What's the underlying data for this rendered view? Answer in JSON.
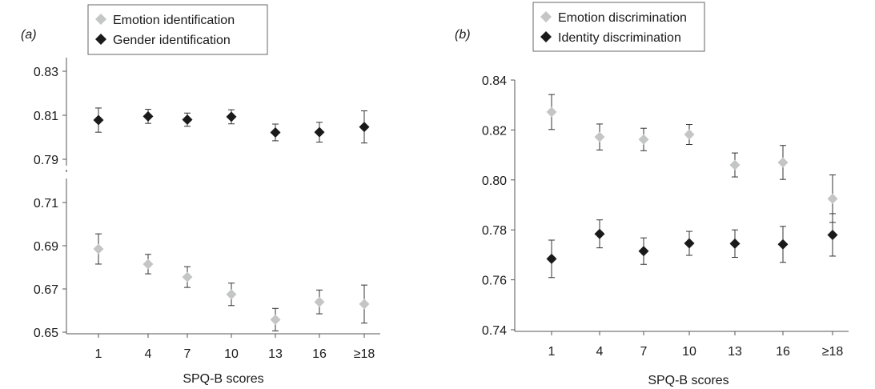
{
  "chart_data": [
    {
      "panel_label": "(a)",
      "type": "scatter",
      "error_bars": true,
      "broken_y_axis": true,
      "categories": [
        "1",
        "4",
        "7",
        "10",
        "13",
        "16",
        "≥18"
      ],
      "xlabel": "SPQ-B scores",
      "ylabel": "",
      "yticks": [
        "0.83",
        "0.81",
        "0.79",
        "0.71",
        "0.69",
        "0.67",
        "0.65"
      ],
      "ylim_lower": [
        0.65,
        0.71
      ],
      "ylim_upper": [
        0.79,
        0.83
      ],
      "legend_position": "top-center",
      "series": [
        {
          "name": "Emotion identification",
          "color": "#c4c6c6",
          "values": [
            0.6885,
            0.6815,
            0.6755,
            0.6675,
            0.6558,
            0.664,
            0.663
          ],
          "errors": [
            0.007,
            0.0045,
            0.0048,
            0.0052,
            0.0052,
            0.0055,
            0.0088
          ]
        },
        {
          "name": "Gender identification",
          "color": "#1a1a1a",
          "values": [
            0.8078,
            0.8095,
            0.808,
            0.8093,
            0.8022,
            0.8023,
            0.8047
          ],
          "errors": [
            0.0055,
            0.0032,
            0.003,
            0.0032,
            0.0038,
            0.0045,
            0.0073
          ]
        }
      ]
    },
    {
      "panel_label": "(b)",
      "type": "scatter",
      "error_bars": true,
      "categories": [
        "1",
        "4",
        "7",
        "10",
        "13",
        "16",
        "≥18"
      ],
      "xlabel": "SPQ-B scores",
      "ylabel": "",
      "yticks": [
        "0.84",
        "0.82",
        "0.80",
        "0.78",
        "0.76",
        "0.74"
      ],
      "ylim": [
        0.74,
        0.84
      ],
      "legend_position": "top-center",
      "series": [
        {
          "name": "Emotion discrimination",
          "color": "#c4c6c6",
          "values": [
            0.8272,
            0.8172,
            0.8162,
            0.8182,
            0.806,
            0.807,
            0.7925
          ],
          "errors": [
            0.007,
            0.0052,
            0.0045,
            0.004,
            0.0048,
            0.0068,
            0.0095
          ]
        },
        {
          "name": "Identity discrimination",
          "color": "#1a1a1a",
          "values": [
            0.7684,
            0.7784,
            0.7715,
            0.7746,
            0.7745,
            0.7742,
            0.778
          ],
          "errors": [
            0.0075,
            0.0056,
            0.0053,
            0.0048,
            0.0055,
            0.0072,
            0.0085
          ]
        }
      ]
    }
  ]
}
